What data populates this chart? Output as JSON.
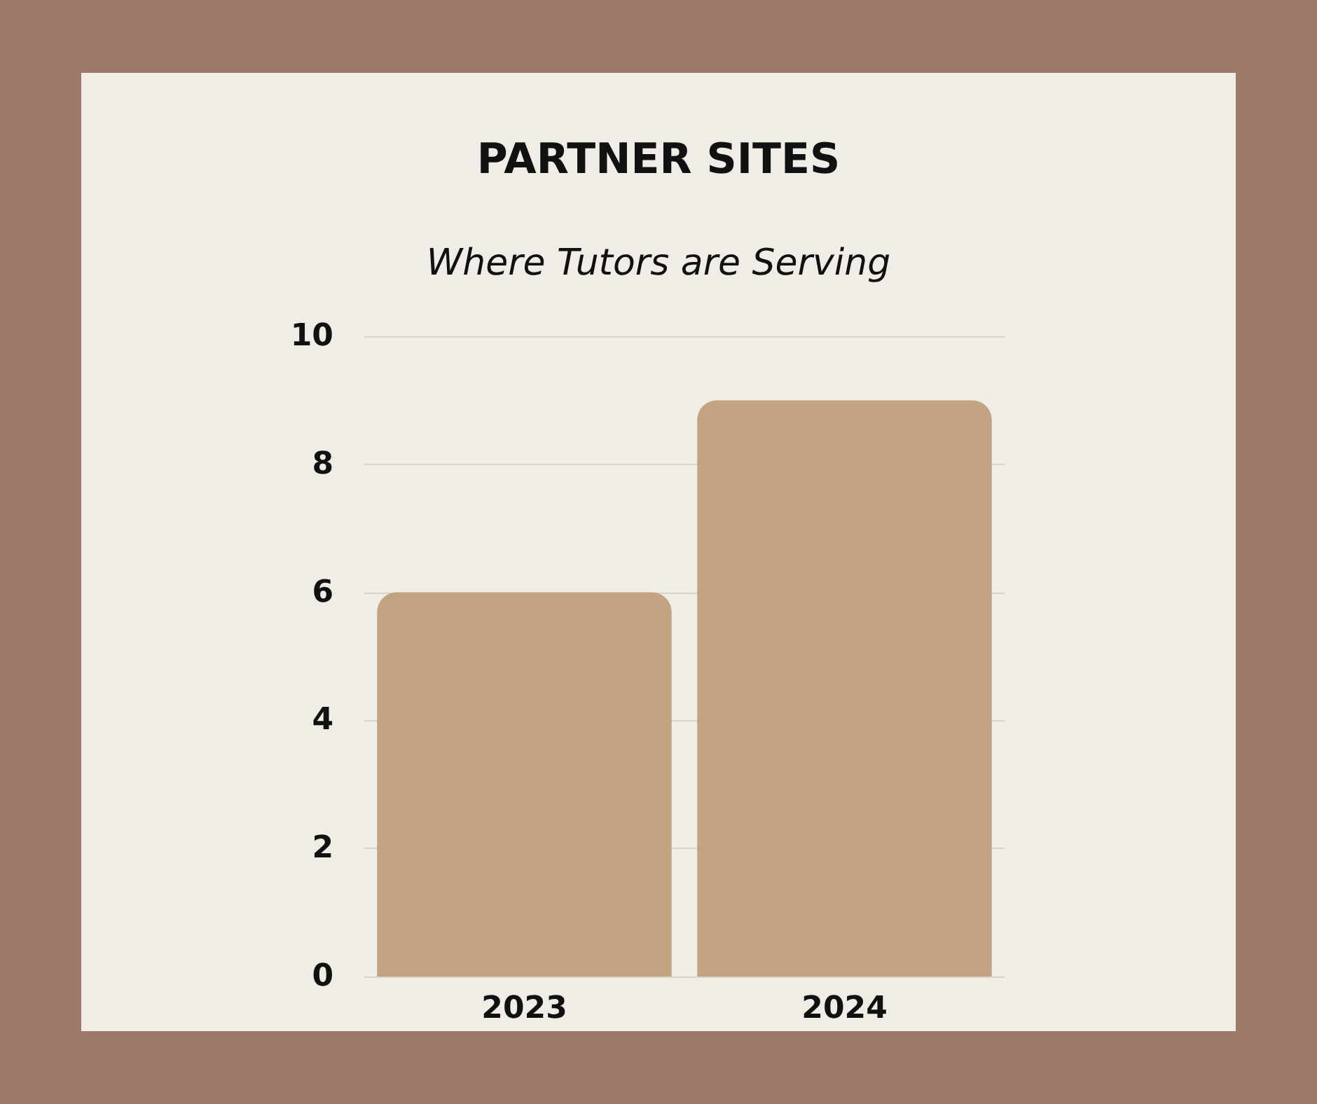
{
  "chart_data": {
    "type": "bar",
    "title": "PARTNER SITES",
    "subtitle": "Where Tutors are Serving",
    "categories": [
      "2023",
      "2024"
    ],
    "values": [
      6,
      9
    ],
    "color": "#c2a482",
    "ylim": [
      0,
      10
    ],
    "yticks": [
      0,
      2,
      4,
      6,
      8,
      10
    ],
    "grid": "y"
  }
}
